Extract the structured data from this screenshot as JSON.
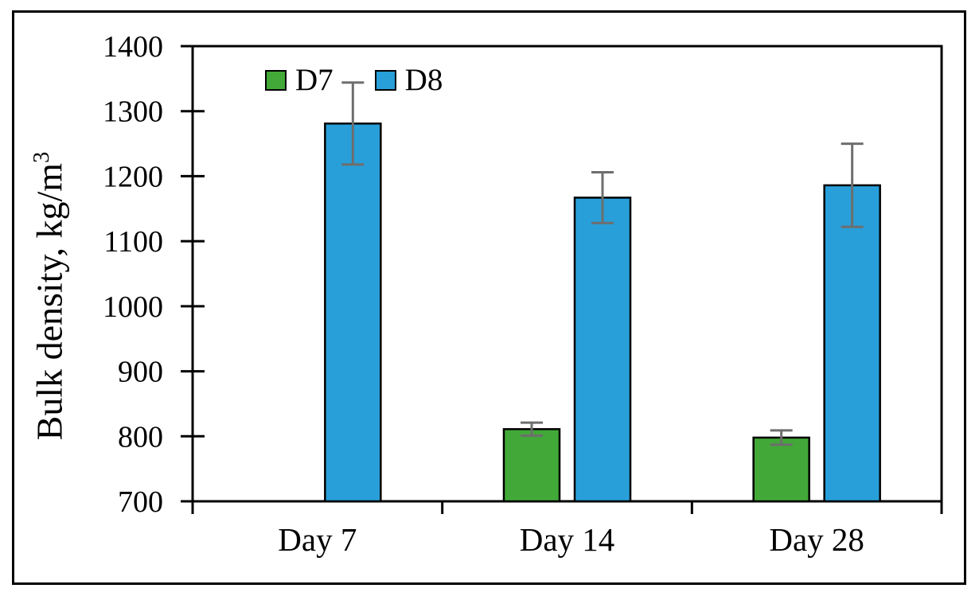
{
  "figure": {
    "background": "#ffffff",
    "outer_border_color": "#000000"
  },
  "chart_data": {
    "type": "bar",
    "title": "",
    "categories": [
      "Day 7",
      "Day 14",
      "Day 28"
    ],
    "series": [
      {
        "name": "D7",
        "color": "#42A938",
        "values": [
          null,
          811,
          798
        ],
        "errors": [
          null,
          10,
          11
        ]
      },
      {
        "name": "D8",
        "color": "#289FD9",
        "values": [
          1281,
          1167,
          1186
        ],
        "errors": [
          63,
          39,
          64
        ]
      }
    ],
    "xlabel": "",
    "ylabel": "Bulk density, kg/m³",
    "ylabel_main": "Bulk density, kg/m",
    "ylabel_sup": "3",
    "ylim": [
      700,
      1400
    ],
    "ytick_step": 100,
    "yticks": [
      700,
      800,
      900,
      1000,
      1100,
      1200,
      1300,
      1400
    ],
    "grid": false,
    "legend_position": "top-inside-left",
    "legend_labels": [
      "D7",
      "D8"
    ],
    "error_bar_color": "#6E6E6E",
    "bar_border_color": "#000000",
    "axis_color": "#000000"
  }
}
